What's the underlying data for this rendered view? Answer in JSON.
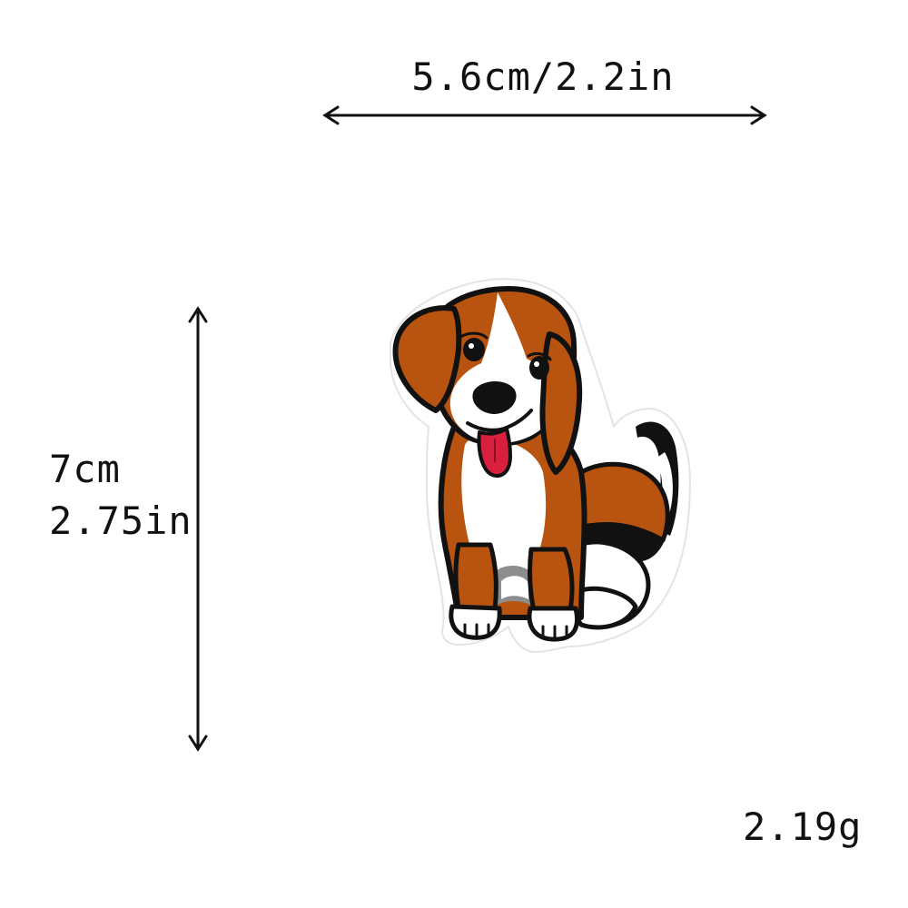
{
  "dimensions": {
    "width_label": "5.6cm/2.2in",
    "height_cm": "7cm",
    "height_in": "2.75in",
    "weight_label": "2.19g"
  },
  "colors": {
    "brown": "#b8540f",
    "black": "#111111",
    "white": "#ffffff",
    "tongue": "#d8203e",
    "gray": "#8d8d8d"
  },
  "subject": {
    "icon": "beagle-dog-patch-icon"
  }
}
